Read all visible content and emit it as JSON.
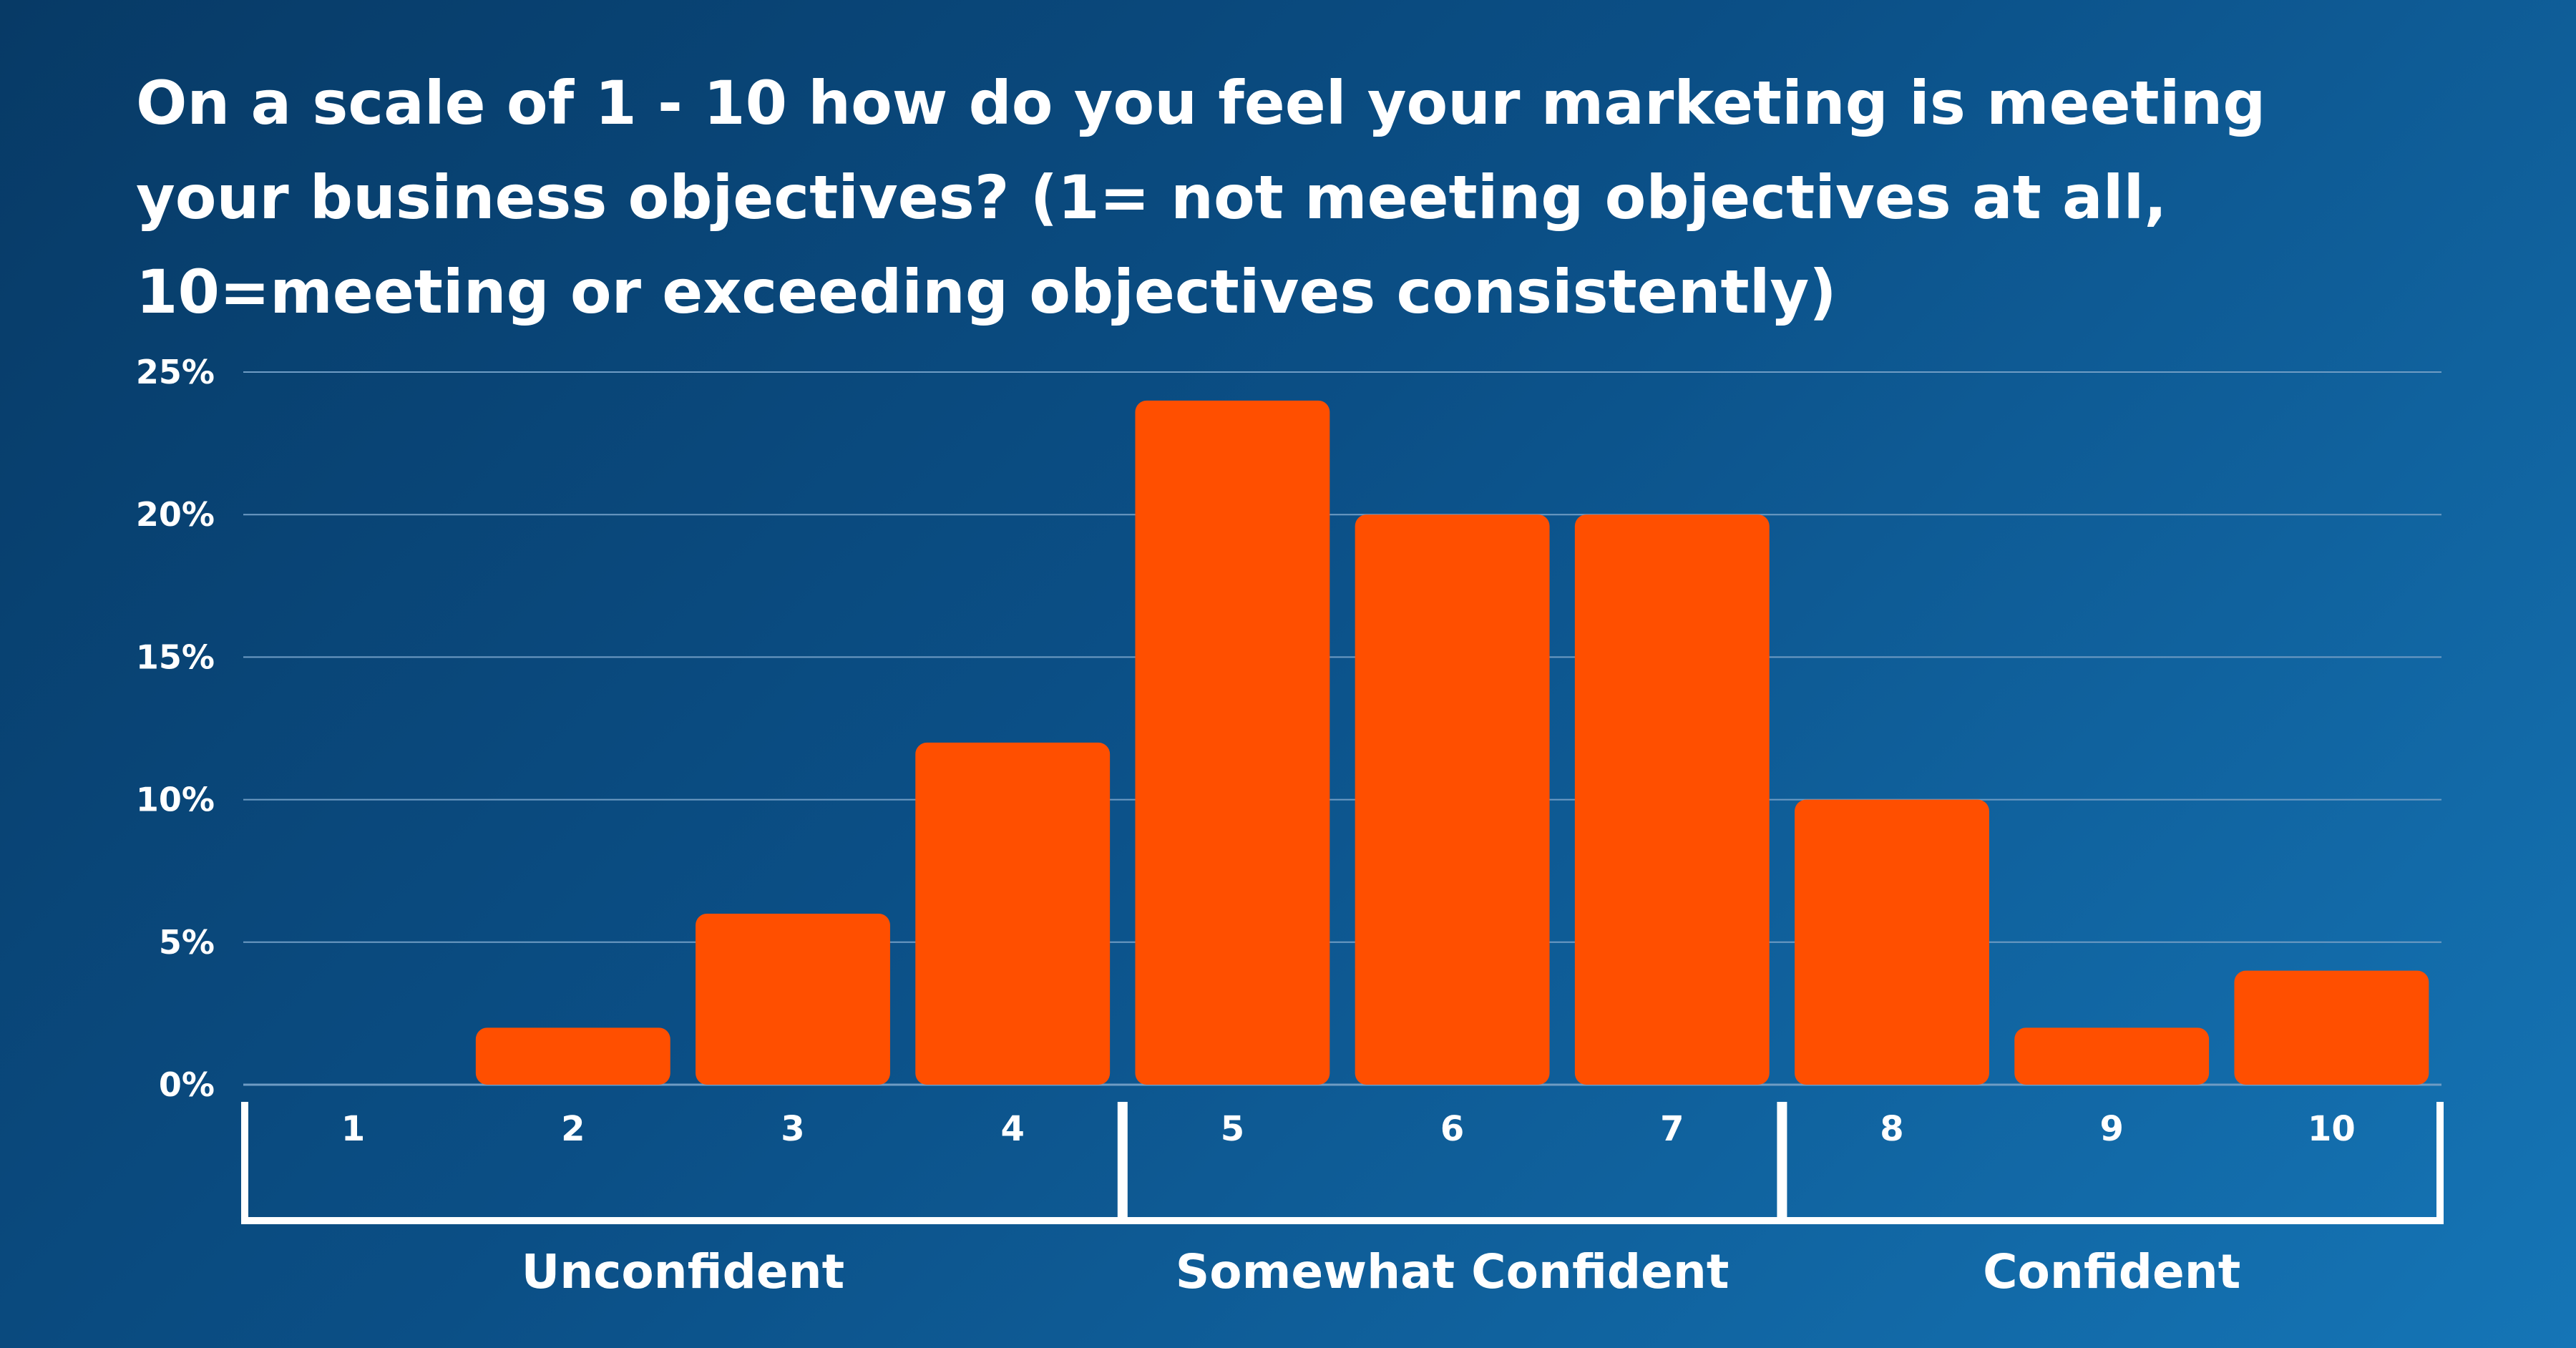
{
  "chart_data": {
    "type": "bar",
    "title": "On a scale of 1 - 10 how do you feel your marketing is meeting your business objectives? (1= not meeting objectives at all, 10=meeting or exceeding objectives consistently)",
    "categories": [
      "1",
      "2",
      "3",
      "4",
      "5",
      "6",
      "7",
      "8",
      "9",
      "10"
    ],
    "values": [
      0,
      2,
      6,
      12,
      24,
      20,
      20,
      10,
      2,
      4
    ],
    "unit": "%",
    "ylim": [
      0,
      25
    ],
    "yticks": [
      "0%",
      "5%",
      "10%",
      "15%",
      "20%",
      "25%"
    ],
    "ytick_values": [
      0,
      5,
      10,
      15,
      20,
      25
    ],
    "grid": true,
    "groups": [
      {
        "label": "Unconfident",
        "from": 0,
        "to": 3
      },
      {
        "label": "Somewhat Confident",
        "from": 4,
        "to": 6
      },
      {
        "label": "Confident",
        "from": 7,
        "to": 9
      }
    ],
    "colors": {
      "bar": "#ff4f00",
      "grid": "#6f9cc4",
      "bracket": "#ffffff"
    }
  }
}
